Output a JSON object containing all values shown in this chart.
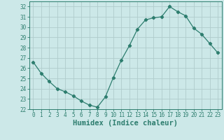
{
  "x": [
    0,
    1,
    2,
    3,
    4,
    5,
    6,
    7,
    8,
    9,
    10,
    11,
    12,
    13,
    14,
    15,
    16,
    17,
    18,
    19,
    20,
    21,
    22,
    23
  ],
  "y": [
    26.6,
    25.5,
    24.7,
    24.0,
    23.7,
    23.3,
    22.8,
    22.4,
    22.2,
    23.2,
    25.1,
    26.8,
    28.2,
    29.8,
    30.7,
    30.9,
    31.0,
    32.0,
    31.5,
    31.1,
    29.9,
    29.3,
    28.4,
    27.5
  ],
  "line_color": "#2d7d6e",
  "marker": "D",
  "marker_size": 2.2,
  "bg_color": "#cce8e8",
  "grid_color": "#b0cccc",
  "xlabel": "Humidex (Indice chaleur)",
  "ylim": [
    22,
    32.5
  ],
  "xlim": [
    -0.5,
    23.5
  ],
  "yticks": [
    22,
    23,
    24,
    25,
    26,
    27,
    28,
    29,
    30,
    31,
    32
  ],
  "xticks": [
    0,
    1,
    2,
    3,
    4,
    5,
    6,
    7,
    8,
    9,
    10,
    11,
    12,
    13,
    14,
    15,
    16,
    17,
    18,
    19,
    20,
    21,
    22,
    23
  ],
  "tick_color": "#2d7d6e",
  "label_color": "#2d7d6e",
  "tick_fontsize": 5.5,
  "xlabel_fontsize": 7.5
}
